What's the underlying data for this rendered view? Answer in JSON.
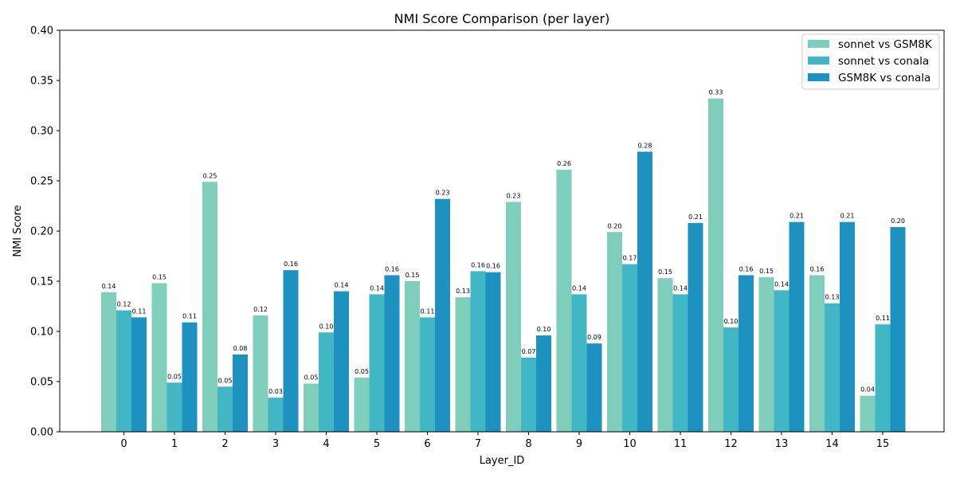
{
  "chart_data": {
    "type": "bar",
    "title": "NMI Score Comparison (per layer)",
    "xlabel": "Layer_ID",
    "ylabel": "NMI Score",
    "ylim": [
      0,
      0.4
    ],
    "yticks": [
      "0.00",
      "0.05",
      "0.10",
      "0.15",
      "0.20",
      "0.25",
      "0.30",
      "0.35",
      "0.40"
    ],
    "categories": [
      "0",
      "1",
      "2",
      "3",
      "4",
      "5",
      "6",
      "7",
      "8",
      "9",
      "10",
      "11",
      "12",
      "13",
      "14",
      "15"
    ],
    "legend_position": "top-right",
    "grid": false,
    "series": [
      {
        "name": "sonnet vs GSM8K",
        "color": "#7fcdbb",
        "values": [
          0.139,
          0.148,
          0.249,
          0.116,
          0.048,
          0.054,
          0.15,
          0.134,
          0.229,
          0.261,
          0.199,
          0.153,
          0.332,
          0.154,
          0.156,
          0.036
        ],
        "labels": [
          "0.14",
          "0.15",
          "0.25",
          "0.12",
          "0.05",
          "0.05",
          "0.15",
          "0.13",
          "0.23",
          "0.26",
          "0.20",
          "0.15",
          "0.33",
          "0.15",
          "0.16",
          "0.04"
        ]
      },
      {
        "name": "sonnet vs conala",
        "color": "#41b6c4",
        "values": [
          0.121,
          0.049,
          0.045,
          0.034,
          0.099,
          0.137,
          0.114,
          0.16,
          0.074,
          0.137,
          0.167,
          0.137,
          0.104,
          0.141,
          0.128,
          0.107
        ],
        "labels": [
          "0.12",
          "0.05",
          "0.05",
          "0.03",
          "0.10",
          "0.14",
          "0.11",
          "0.16",
          "0.07",
          "0.14",
          "0.17",
          "0.14",
          "0.10",
          "0.14",
          "0.13",
          "0.11"
        ]
      },
      {
        "name": "GSM8K vs conala",
        "color": "#1d91c0",
        "values": [
          0.114,
          0.109,
          0.077,
          0.161,
          0.14,
          0.156,
          0.232,
          0.159,
          0.096,
          0.088,
          0.279,
          0.208,
          0.156,
          0.209,
          0.209,
          0.204
        ],
        "labels": [
          "0.11",
          "0.11",
          "0.08",
          "0.16",
          "0.14",
          "0.16",
          "0.23",
          "0.16",
          "0.10",
          "0.09",
          "0.28",
          "0.21",
          "0.16",
          "0.21",
          "0.21",
          "0.20"
        ]
      }
    ]
  }
}
